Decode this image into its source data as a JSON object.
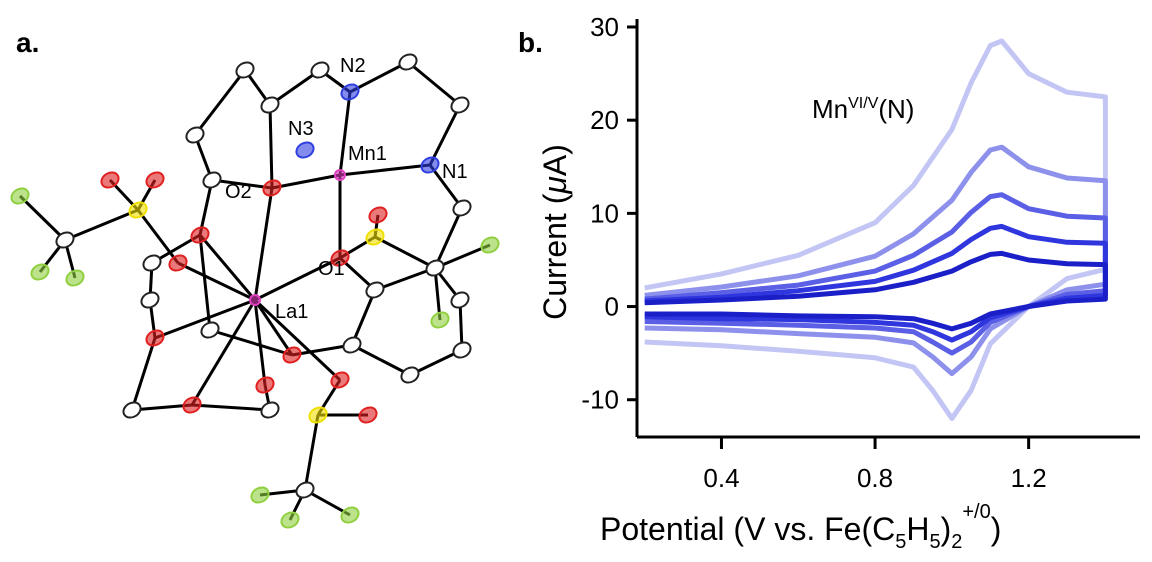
{
  "panel_a": {
    "label": "a.",
    "atoms": [
      "N2",
      "N3",
      "Mn1",
      "N1",
      "O2",
      "O1",
      "La1"
    ]
  },
  "chart_data": {
    "type": "line",
    "panel_label": "b.",
    "annotation": {
      "base": "Mn",
      "sup": "VI/V",
      "tail": "(N)"
    },
    "ylabel": {
      "pre": "Current (",
      "mu": "μ",
      "post": "A)"
    },
    "xlabel_parts": [
      "Potential (V vs. Fe(C",
      "5",
      "H",
      "5",
      ")",
      "2",
      "+/0",
      ")"
    ],
    "xlim": [
      0.18,
      1.49
    ],
    "ylim": [
      -14,
      30
    ],
    "xticks": [
      0.4,
      0.8,
      1.2
    ],
    "yticks": [
      -10,
      0,
      10,
      20,
      30
    ],
    "series": [
      {
        "color": "#c3c6f4",
        "x": [
          0.2,
          0.4,
          0.6,
          0.8,
          0.9,
          1.0,
          1.05,
          1.1,
          1.13,
          1.2,
          1.3,
          1.4,
          1.4,
          1.3,
          1.2,
          1.1,
          1.05,
          1.0,
          0.95,
          0.9,
          0.8,
          0.6,
          0.4,
          0.2
        ],
        "values": [
          2,
          3.5,
          5.5,
          9,
          13,
          19,
          24,
          28,
          28.5,
          25,
          23,
          22.5,
          4,
          3,
          0,
          -4,
          -9,
          -12,
          -9,
          -6.5,
          -5.5,
          -4.8,
          -4.2,
          -3.8
        ]
      },
      {
        "color": "#8d91ec",
        "x": [
          0.2,
          0.4,
          0.6,
          0.8,
          0.9,
          1.0,
          1.05,
          1.1,
          1.13,
          1.2,
          1.3,
          1.4,
          1.4,
          1.3,
          1.2,
          1.1,
          1.05,
          1.0,
          0.95,
          0.9,
          0.8,
          0.6,
          0.4,
          0.2
        ],
        "values": [
          1.2,
          2.1,
          3.3,
          5.4,
          7.8,
          11.4,
          14.4,
          16.8,
          17.1,
          15,
          13.8,
          13.5,
          2.4,
          1.8,
          0,
          -2.4,
          -5.4,
          -7.2,
          -5.4,
          -3.9,
          -3.3,
          -2.9,
          -2.5,
          -2.3
        ]
      },
      {
        "color": "#5a5fe6",
        "x": [
          0.2,
          0.4,
          0.6,
          0.8,
          0.9,
          1.0,
          1.05,
          1.1,
          1.13,
          1.2,
          1.3,
          1.4,
          1.4,
          1.3,
          1.2,
          1.1,
          1.05,
          1.0,
          0.95,
          0.9,
          0.8,
          0.6,
          0.4,
          0.2
        ],
        "values": [
          0.8,
          1.5,
          2.3,
          3.8,
          5.5,
          8,
          10.1,
          11.8,
          12,
          10.5,
          9.7,
          9.5,
          1.7,
          1.3,
          0,
          -1.7,
          -3.8,
          -5,
          -3.8,
          -2.7,
          -2.3,
          -2,
          -1.8,
          -1.6
        ]
      },
      {
        "color": "#2f36de",
        "x": [
          0.2,
          0.4,
          0.6,
          0.8,
          0.9,
          1.0,
          1.05,
          1.1,
          1.13,
          1.2,
          1.3,
          1.4,
          1.4,
          1.3,
          1.2,
          1.1,
          1.05,
          1.0,
          0.95,
          0.9,
          0.8,
          0.6,
          0.4,
          0.2
        ],
        "values": [
          0.6,
          1,
          1.7,
          2.7,
          3.9,
          5.7,
          7.2,
          8.4,
          8.6,
          7.5,
          6.9,
          6.8,
          1.2,
          0.9,
          0,
          -1.2,
          -2.7,
          -3.6,
          -2.7,
          -2,
          -1.7,
          -1.4,
          -1.3,
          -1.1
        ]
      },
      {
        "color": "#1a1fc8",
        "x": [
          0.2,
          0.4,
          0.6,
          0.8,
          0.9,
          1.0,
          1.05,
          1.1,
          1.13,
          1.2,
          1.3,
          1.4,
          1.4,
          1.3,
          1.2,
          1.1,
          1.05,
          1.0,
          0.95,
          0.9,
          0.8,
          0.6,
          0.4,
          0.2
        ],
        "values": [
          0.4,
          0.7,
          1.1,
          1.8,
          2.6,
          3.8,
          4.8,
          5.6,
          5.7,
          5,
          4.6,
          4.5,
          0.8,
          0.6,
          0,
          -0.8,
          -1.8,
          -2.4,
          -1.8,
          -1.3,
          -1.1,
          -1,
          -0.8,
          -0.8
        ]
      }
    ]
  }
}
